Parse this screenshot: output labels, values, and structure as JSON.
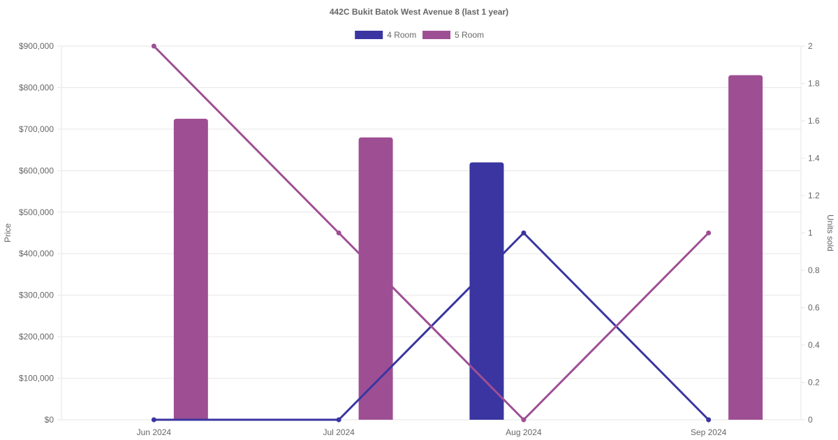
{
  "chart_data": {
    "type": "bar",
    "title": "442C Bukit Batok West Avenue 8 (last 1 year)",
    "categories": [
      "Jun 2024",
      "Jul 2024",
      "Aug 2024",
      "Sep 2024"
    ],
    "y_left": {
      "label": "Price",
      "range": [
        0,
        900000
      ],
      "ticks": [
        "$0",
        "$100,000",
        "$200,000",
        "$300,000",
        "$400,000",
        "$500,000",
        "$600,000",
        "$700,000",
        "$800,000",
        "$900,000"
      ]
    },
    "y_right": {
      "label": "Units sold",
      "range": [
        0,
        2
      ],
      "ticks": [
        "0",
        "0.2",
        "0.4",
        "0.6",
        "0.8",
        "1",
        "1.2",
        "1.4",
        "1.6",
        "1.8",
        "2"
      ]
    },
    "legend": {
      "placement": "top-center"
    },
    "series": [
      {
        "name": "4 Room",
        "color": "#3a35a1",
        "price": [
          null,
          null,
          620000,
          null
        ],
        "units": [
          0,
          0,
          1,
          0
        ]
      },
      {
        "name": "5 Room",
        "color": "#9e4f94",
        "price": [
          725000,
          680000,
          null,
          830000
        ],
        "units": [
          2,
          1,
          0,
          1
        ]
      }
    ],
    "grid": true
  }
}
